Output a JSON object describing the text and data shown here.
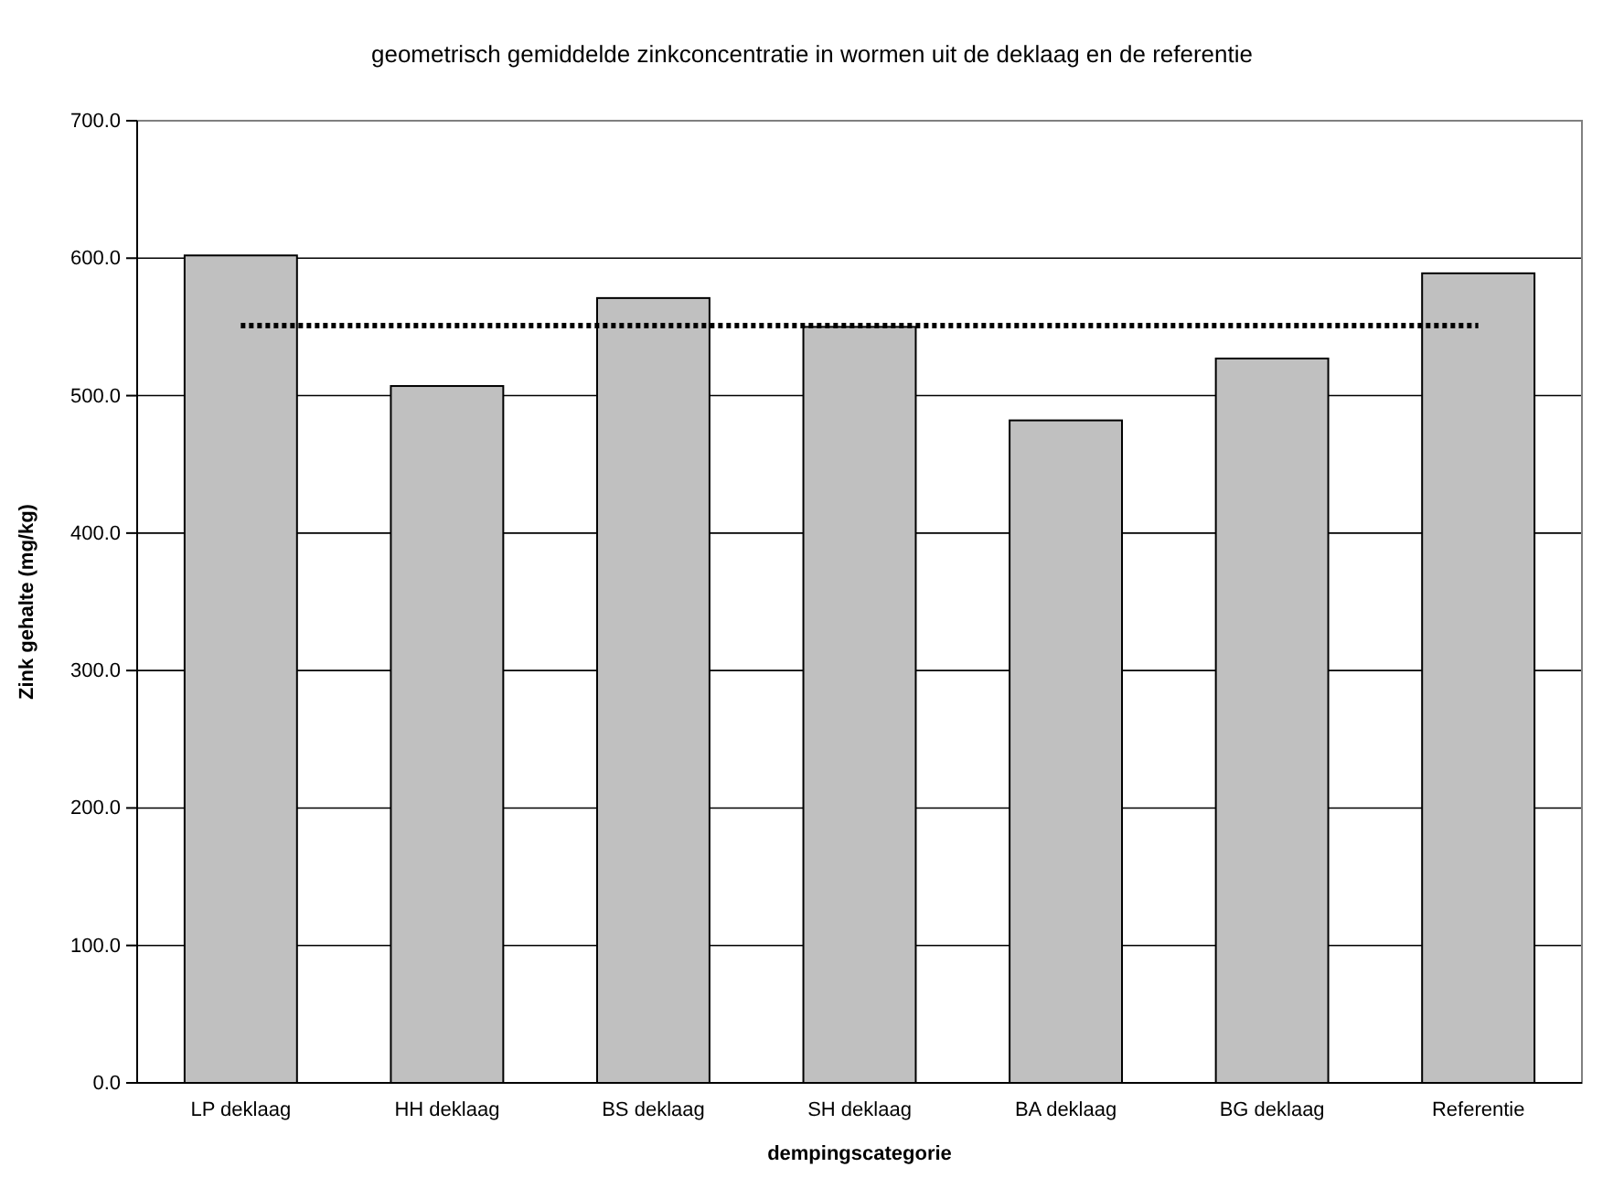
{
  "chart_data": {
    "type": "bar",
    "title": "geometrisch gemiddelde zinkconcentratie in wormen uit de deklaag en de referentie",
    "xlabel": "dempingscategorie",
    "ylabel": "Zink gehalte (mg/kg)",
    "categories": [
      "LP deklaag",
      "HH deklaag",
      "BS deklaag",
      "SH deklaag",
      "BA deklaag",
      "BG deklaag",
      "Referentie"
    ],
    "series": [
      {
        "color": "#c0c0c0",
        "values": [
          602,
          507,
          571,
          550,
          482,
          527,
          589
        ]
      },
      {
        "type": "line",
        "color": "#000000",
        "line_style": "dotted",
        "marker": "none",
        "values": [
          551,
          551,
          551,
          551,
          551,
          551,
          551
        ]
      }
    ],
    "ylim": [
      0,
      700
    ],
    "yticks": [
      {
        "value": 0,
        "label": "0.0"
      },
      {
        "value": 100,
        "label": "100.0"
      },
      {
        "value": 200,
        "label": "200.0"
      },
      {
        "value": 300,
        "label": "300.0"
      },
      {
        "value": 400,
        "label": "400.0"
      },
      {
        "value": 500,
        "label": "500.0"
      },
      {
        "value": 600,
        "label": "600.0"
      },
      {
        "value": 700,
        "label": "700.0"
      }
    ],
    "grid": "y"
  }
}
